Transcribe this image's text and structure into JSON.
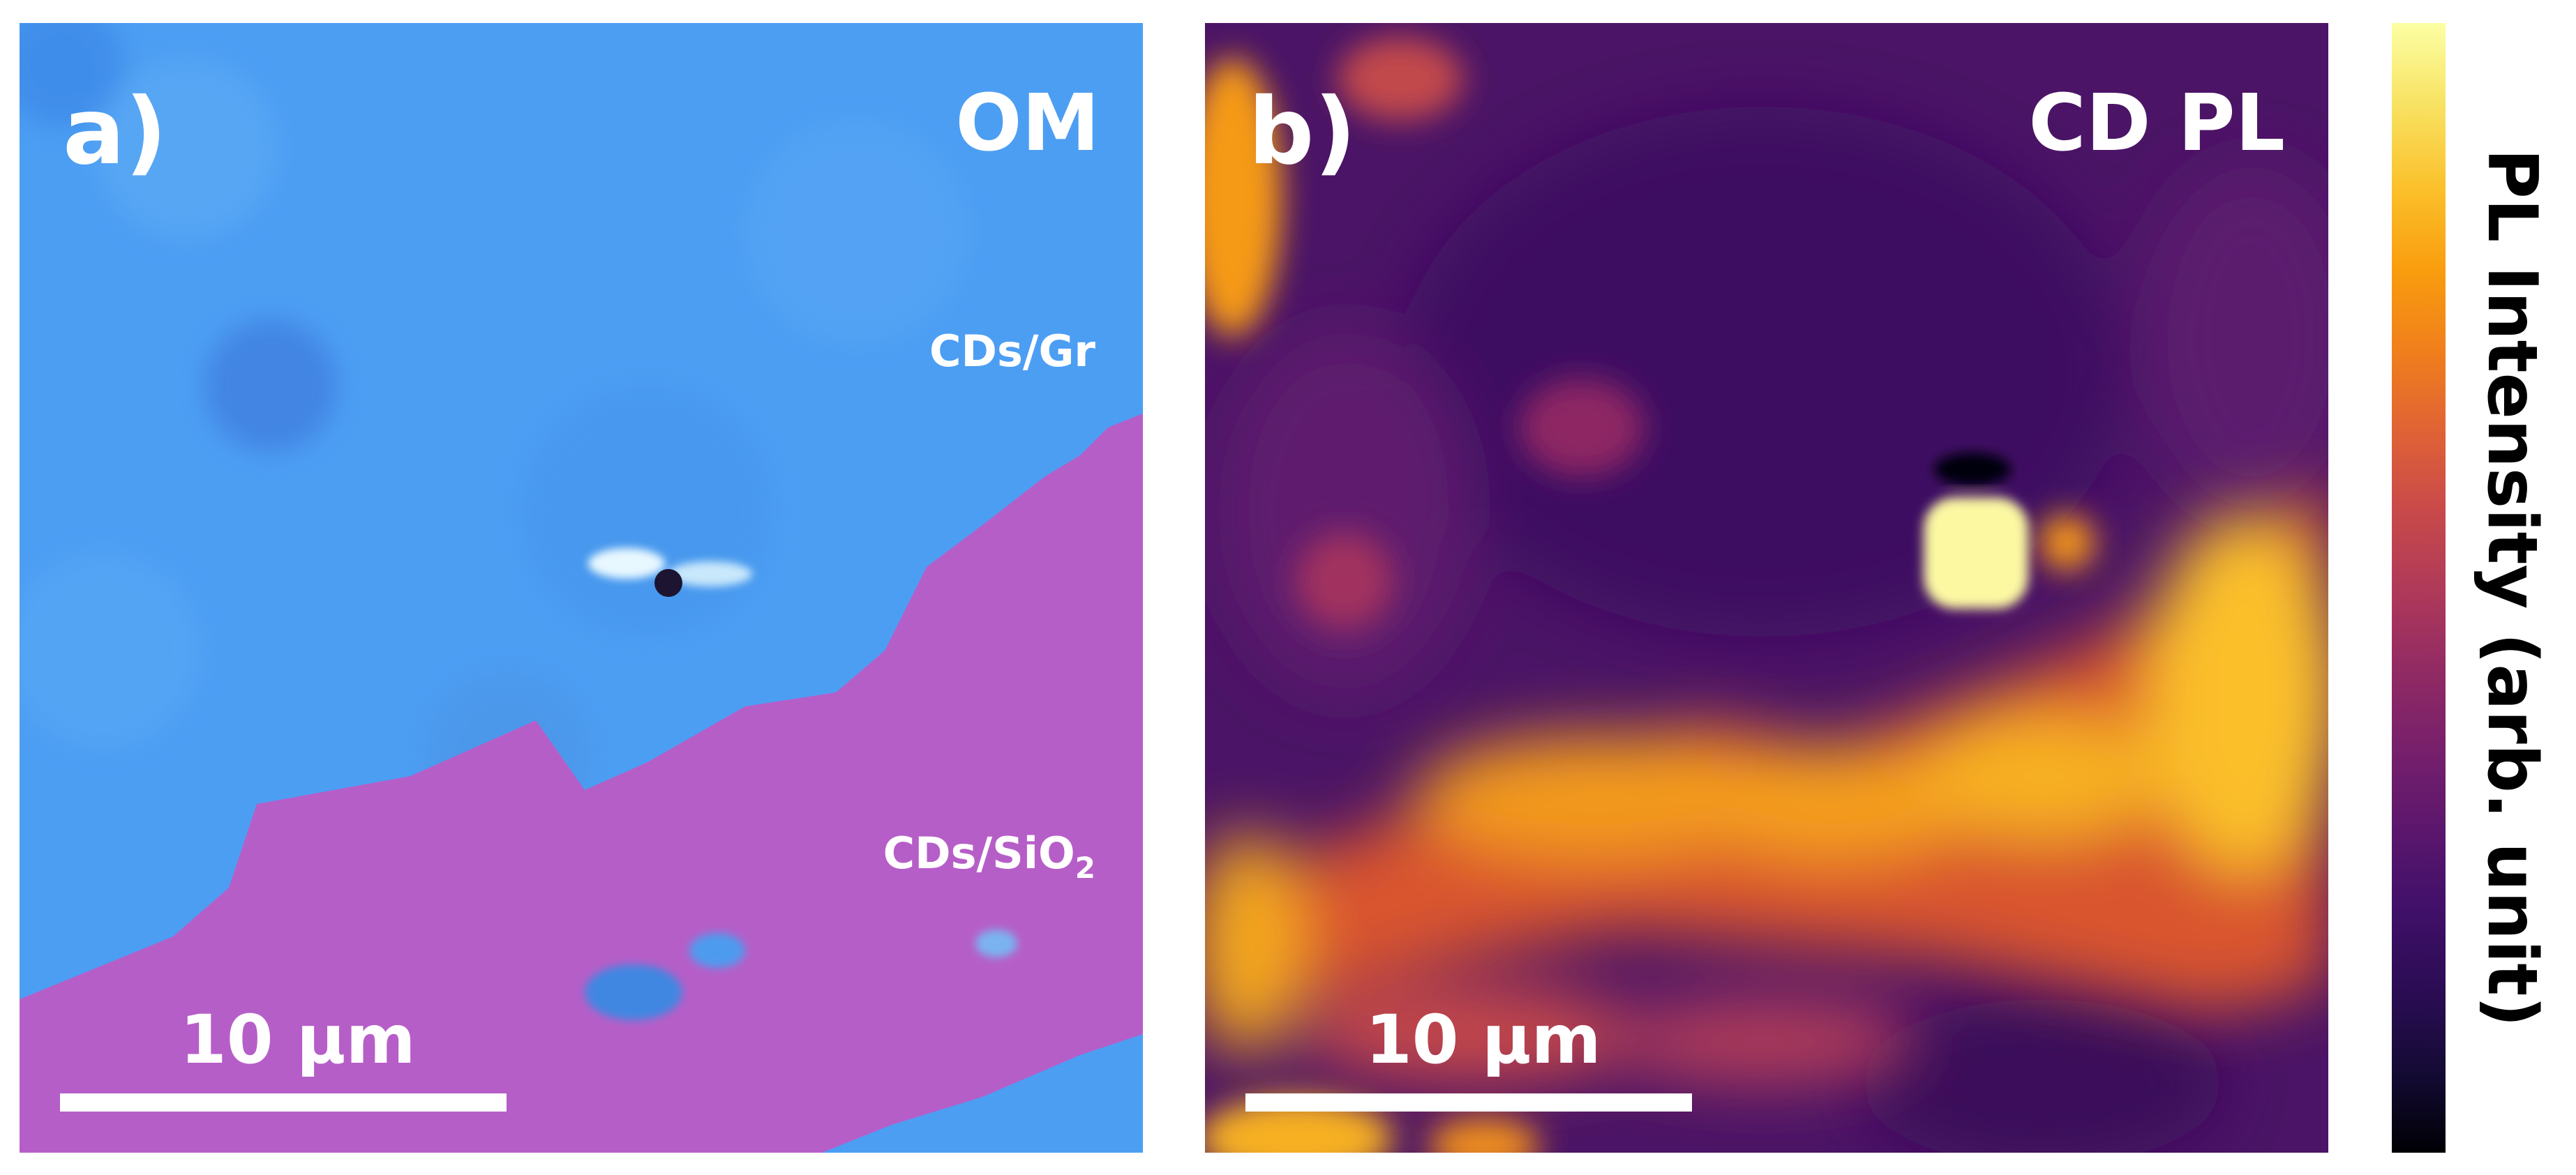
{
  "panels": [
    {
      "letter": "a)",
      "title": "OM",
      "region_labels": {
        "graphene": "CDs/Gr",
        "substrate_main": "CDs/SiO",
        "substrate_sub": "2"
      },
      "scale_bar": "10 μm",
      "colors": {
        "graphene_region": "#4a9cf2",
        "sio2_region": "#b65ec8"
      }
    },
    {
      "letter": "b)",
      "title": "CD PL",
      "scale_bar": "10 μm",
      "colors": {
        "low_intensity": "#4b1466",
        "high_intensity": "#fbbf29"
      }
    }
  ],
  "colorbar": {
    "label": "PL Intensity (arb. unit)",
    "colormap": "inferno"
  }
}
